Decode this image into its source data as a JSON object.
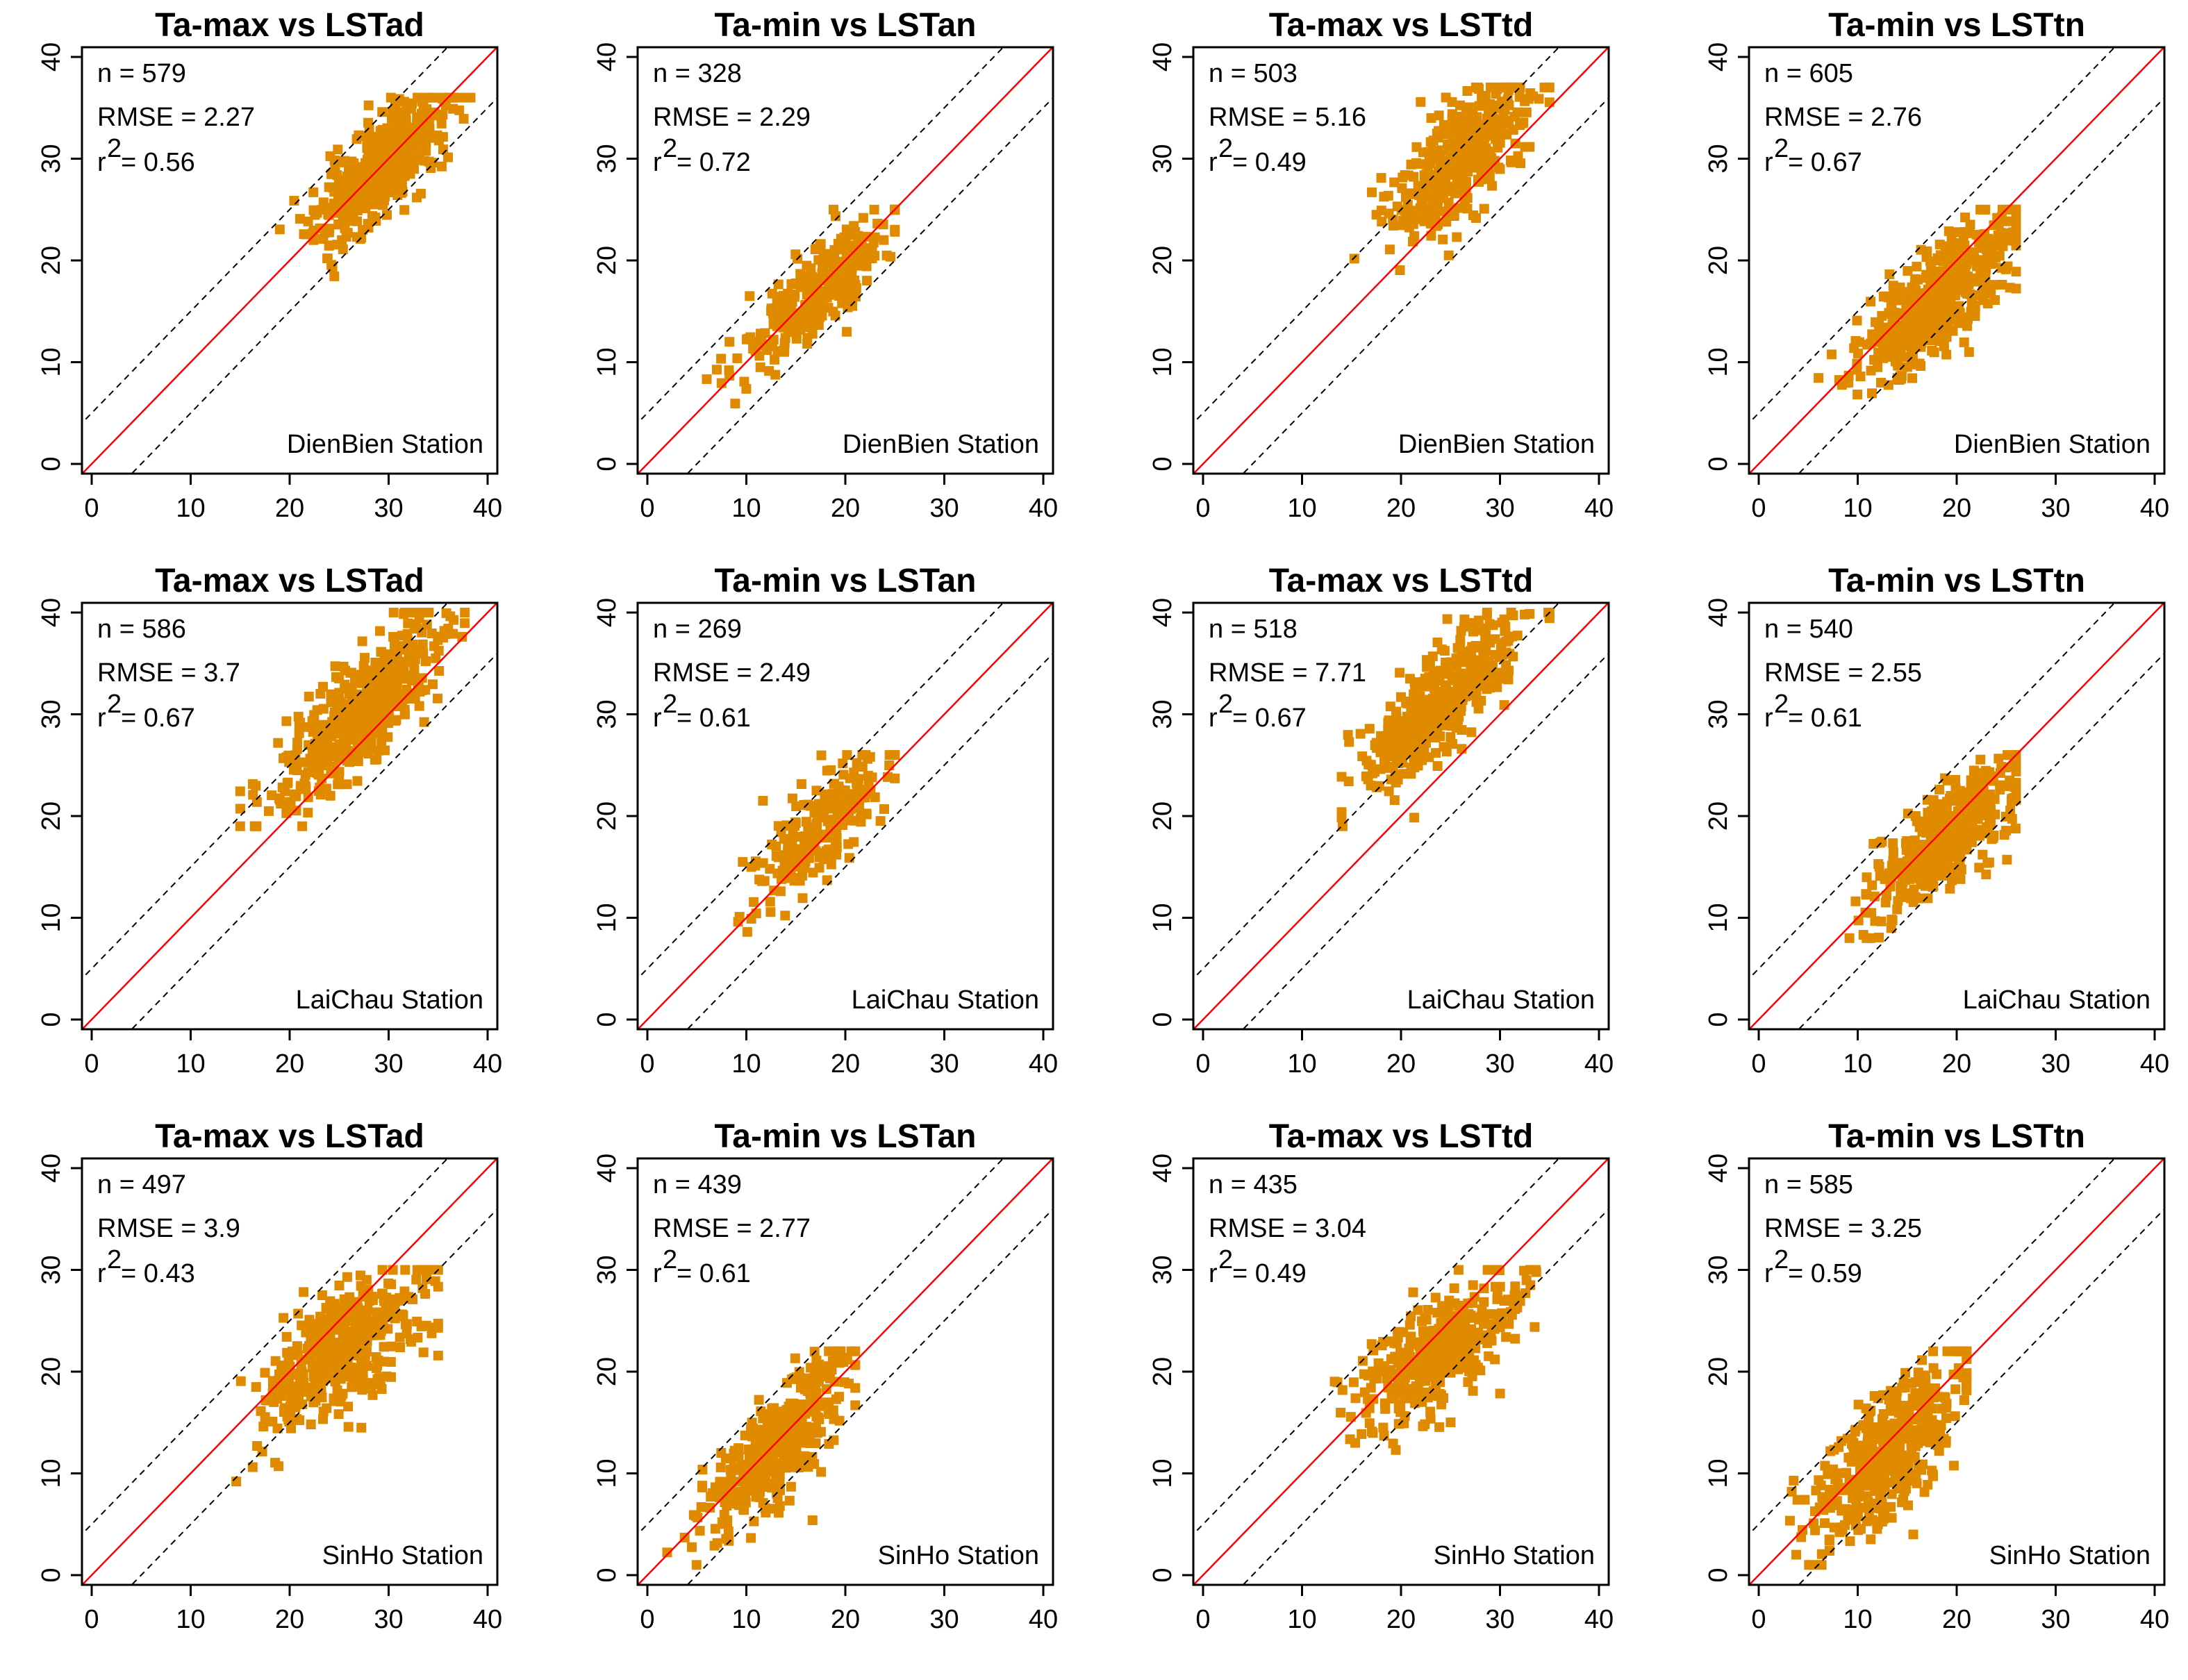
{
  "figure": {
    "columns": 4,
    "rows": 3,
    "point_color": "#E08A00",
    "fit_color": "#FF0000",
    "band_color": "#000000"
  },
  "chart_data": [
    {
      "type": "scatter",
      "title": "Ta-max vs LSTad",
      "station": "DienBien Station",
      "n_label": "n = 579",
      "rmse_label": "RMSE = 2.27",
      "r2_prefix": "r",
      "r2_sup": "2",
      "r2_value": "= 0.56",
      "xlim": [
        0,
        40
      ],
      "ylim": [
        0,
        40
      ],
      "x_ticks": [
        "0",
        "10",
        "20",
        "30",
        "40"
      ],
      "y_ticks": [
        "0",
        "10",
        "20",
        "30",
        "40"
      ],
      "band_offset": 5,
      "cloud": {
        "cx": 29,
        "cy": 29,
        "sx": 3.2,
        "sy": 3.6,
        "rho": 0.75,
        "xmin": 19,
        "xmax": 39,
        "ymin": 17,
        "ymax": 36,
        "count": 480,
        "seed": 11
      }
    },
    {
      "type": "scatter",
      "title": "Ta-min vs LSTan",
      "station": "DienBien Station",
      "n_label": "n = 328",
      "rmse_label": "RMSE = 2.29",
      "r2_prefix": "r",
      "r2_sup": "2",
      "r2_value": "= 0.72",
      "xlim": [
        0,
        40
      ],
      "ylim": [
        0,
        40
      ],
      "x_ticks": [
        "0",
        "10",
        "20",
        "30",
        "40"
      ],
      "y_ticks": [
        "0",
        "10",
        "20",
        "30",
        "40"
      ],
      "band_offset": 5,
      "cloud": {
        "cx": 17,
        "cy": 17,
        "sx": 3.8,
        "sy": 3.8,
        "rho": 0.85,
        "xmin": 6,
        "xmax": 25,
        "ymin": 5,
        "ymax": 25,
        "count": 300,
        "seed": 22
      }
    },
    {
      "type": "scatter",
      "title": "Ta-max vs LSTtd",
      "station": "DienBien Station",
      "n_label": "n = 503",
      "rmse_label": "RMSE = 5.16",
      "r2_prefix": "r",
      "r2_sup": "2",
      "r2_value": "= 0.49",
      "xlim": [
        0,
        40
      ],
      "ylim": [
        0,
        40
      ],
      "x_ticks": [
        "0",
        "10",
        "20",
        "30",
        "40"
      ],
      "y_ticks": [
        "0",
        "10",
        "20",
        "30",
        "40"
      ],
      "band_offset": 5,
      "cloud": {
        "cx": 26,
        "cy": 30,
        "sx": 3.5,
        "sy": 3.8,
        "rho": 0.7,
        "xmin": 15,
        "xmax": 35,
        "ymin": 17,
        "ymax": 37,
        "count": 420,
        "seed": 33
      }
    },
    {
      "type": "scatter",
      "title": "Ta-min vs LSTtn",
      "station": "DienBien Station",
      "n_label": "n = 605",
      "rmse_label": "RMSE = 2.76",
      "r2_prefix": "r",
      "r2_sup": "2",
      "r2_value": "= 0.67",
      "xlim": [
        0,
        40
      ],
      "ylim": [
        0,
        40
      ],
      "x_ticks": [
        "0",
        "10",
        "20",
        "30",
        "40"
      ],
      "y_ticks": [
        "0",
        "10",
        "20",
        "30",
        "40"
      ],
      "band_offset": 5,
      "cloud": {
        "cx": 18,
        "cy": 16,
        "sx": 4.2,
        "sy": 4.2,
        "rho": 0.82,
        "xmin": 6,
        "xmax": 26,
        "ymin": 5,
        "ymax": 25,
        "count": 520,
        "seed": 44
      }
    },
    {
      "type": "scatter",
      "title": "Ta-max vs LSTad",
      "station": "LaiChau Station",
      "n_label": "n = 586",
      "rmse_label": "RMSE = 3.7",
      "r2_prefix": "r",
      "r2_sup": "2",
      "r2_value": "= 0.67",
      "xlim": [
        0,
        40
      ],
      "ylim": [
        0,
        40
      ],
      "x_ticks": [
        "0",
        "10",
        "20",
        "30",
        "40"
      ],
      "y_ticks": [
        "0",
        "10",
        "20",
        "30",
        "40"
      ],
      "band_offset": 5,
      "cloud": {
        "cx": 27,
        "cy": 30,
        "sx": 4.3,
        "sy": 4.6,
        "rho": 0.82,
        "xmin": 15,
        "xmax": 38,
        "ymin": 19,
        "ymax": 40,
        "count": 500,
        "seed": 55
      }
    },
    {
      "type": "scatter",
      "title": "Ta-min vs LSTan",
      "station": "LaiChau Station",
      "n_label": "n = 269",
      "rmse_label": "RMSE = 2.49",
      "r2_prefix": "r",
      "r2_sup": "2",
      "r2_value": "= 0.61",
      "xlim": [
        0,
        40
      ],
      "ylim": [
        0,
        40
      ],
      "x_ticks": [
        "0",
        "10",
        "20",
        "30",
        "40"
      ],
      "y_ticks": [
        "0",
        "10",
        "20",
        "30",
        "40"
      ],
      "band_offset": 5,
      "cloud": {
        "cx": 18,
        "cy": 19,
        "sx": 3.2,
        "sy": 3.4,
        "rho": 0.78,
        "xmin": 7,
        "xmax": 25,
        "ymin": 8,
        "ymax": 26,
        "count": 250,
        "seed": 66
      }
    },
    {
      "type": "scatter",
      "title": "Ta-max vs LSTtd",
      "station": "LaiChau Station",
      "n_label": "n = 518",
      "rmse_label": "RMSE = 7.71",
      "r2_prefix": "r",
      "r2_sup": "2",
      "r2_value": "= 0.67",
      "xlim": [
        0,
        40
      ],
      "ylim": [
        0,
        40
      ],
      "x_ticks": [
        "0",
        "10",
        "20",
        "30",
        "40"
      ],
      "y_ticks": [
        "0",
        "10",
        "20",
        "30",
        "40"
      ],
      "band_offset": 5,
      "cloud": {
        "cx": 24,
        "cy": 31,
        "sx": 3.8,
        "sy": 4.2,
        "rho": 0.78,
        "xmin": 14,
        "xmax": 35,
        "ymin": 19,
        "ymax": 40,
        "count": 440,
        "seed": 77
      }
    },
    {
      "type": "scatter",
      "title": "Ta-min vs LSTtn",
      "station": "LaiChau Station",
      "n_label": "n = 540",
      "rmse_label": "RMSE = 2.55",
      "r2_prefix": "r",
      "r2_sup": "2",
      "r2_value": "= 0.61",
      "xlim": [
        0,
        40
      ],
      "ylim": [
        0,
        40
      ],
      "x_ticks": [
        "0",
        "10",
        "20",
        "30",
        "40"
      ],
      "y_ticks": [
        "0",
        "10",
        "20",
        "30",
        "40"
      ],
      "band_offset": 5,
      "cloud": {
        "cx": 19,
        "cy": 18,
        "sx": 3.6,
        "sy": 3.8,
        "rho": 0.78,
        "xmin": 9,
        "xmax": 26,
        "ymin": 8,
        "ymax": 26,
        "count": 460,
        "seed": 88
      }
    },
    {
      "type": "scatter",
      "title": "Ta-max vs LSTad",
      "station": "SinHo Station",
      "n_label": "n = 497",
      "rmse_label": "RMSE = 3.9",
      "r2_prefix": "r",
      "r2_sup": "2",
      "r2_value": "= 0.43",
      "xlim": [
        0,
        40
      ],
      "ylim": [
        0,
        40
      ],
      "x_ticks": [
        "0",
        "10",
        "20",
        "30",
        "40"
      ],
      "y_ticks": [
        "0",
        "10",
        "20",
        "30",
        "40"
      ],
      "band_offset": 5,
      "cloud": {
        "cx": 25,
        "cy": 22,
        "sx": 4.4,
        "sy": 4.0,
        "rho": 0.65,
        "xmin": 12,
        "xmax": 35,
        "ymin": 7,
        "ymax": 30,
        "count": 430,
        "seed": 99
      }
    },
    {
      "type": "scatter",
      "title": "Ta-min vs LSTan",
      "station": "SinHo Station",
      "n_label": "n = 439",
      "rmse_label": "RMSE = 2.77",
      "r2_prefix": "r",
      "r2_sup": "2",
      "r2_value": "= 0.61",
      "xlim": [
        0,
        40
      ],
      "ylim": [
        0,
        40
      ],
      "x_ticks": [
        "0",
        "10",
        "20",
        "30",
        "40"
      ],
      "y_ticks": [
        "0",
        "10",
        "20",
        "30",
        "40"
      ],
      "band_offset": 5,
      "cloud": {
        "cx": 13,
        "cy": 13,
        "sx": 3.6,
        "sy": 4.2,
        "rho": 0.78,
        "xmin": 2,
        "xmax": 21,
        "ymin": 1,
        "ymax": 22,
        "count": 400,
        "seed": 111
      }
    },
    {
      "type": "scatter",
      "title": "Ta-max vs LSTtd",
      "station": "SinHo Station",
      "n_label": "n = 435",
      "rmse_label": "RMSE = 3.04",
      "r2_prefix": "r",
      "r2_sup": "2",
      "r2_value": "= 0.49",
      "xlim": [
        0,
        40
      ],
      "ylim": [
        0,
        40
      ],
      "x_ticks": [
        "0",
        "10",
        "20",
        "30",
        "40"
      ],
      "y_ticks": [
        "0",
        "10",
        "20",
        "30",
        "40"
      ],
      "band_offset": 5,
      "cloud": {
        "cx": 24,
        "cy": 22,
        "sx": 4.2,
        "sy": 3.6,
        "rho": 0.7,
        "xmin": 10,
        "xmax": 35,
        "ymin": 8,
        "ymax": 30,
        "count": 400,
        "seed": 122
      }
    },
    {
      "type": "scatter",
      "title": "Ta-min vs LSTtn",
      "station": "SinHo Station",
      "n_label": "n = 585",
      "rmse_label": "RMSE = 3.25",
      "r2_prefix": "r",
      "r2_sup": "2",
      "r2_value": "= 0.59",
      "xlim": [
        0,
        40
      ],
      "ylim": [
        0,
        40
      ],
      "x_ticks": [
        "0",
        "10",
        "20",
        "30",
        "40"
      ],
      "y_ticks": [
        "0",
        "10",
        "20",
        "30",
        "40"
      ],
      "band_offset": 5,
      "cloud": {
        "cx": 13,
        "cy": 12,
        "sx": 3.8,
        "sy": 4.4,
        "rho": 0.72,
        "xmin": 1,
        "xmax": 21,
        "ymin": 1,
        "ymax": 22,
        "count": 500,
        "seed": 133
      }
    }
  ]
}
